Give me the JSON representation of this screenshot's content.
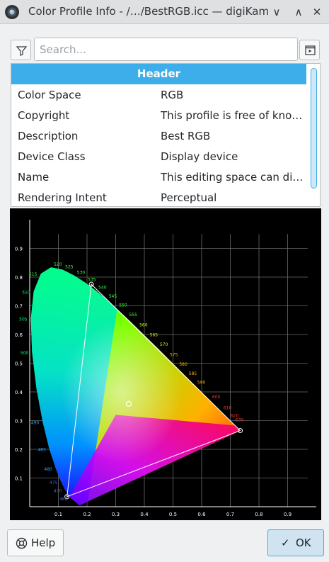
{
  "window": {
    "title": "Color Profile Info - /…/BestRGB.icc — digiKam",
    "minimize_glyph": "∨",
    "maximize_glyph": "∧",
    "close_glyph": "✕"
  },
  "toolbar": {
    "search_placeholder": "Search..."
  },
  "metadata_table": {
    "header": "Header",
    "rows": [
      {
        "key": "Color Space",
        "value": "RGB"
      },
      {
        "key": "Copyright",
        "value": "This profile is free of kno…"
      },
      {
        "key": "Description",
        "value": "Best RGB"
      },
      {
        "key": "Device Class",
        "value": "Display device"
      },
      {
        "key": "Name",
        "value": "This editing space can dis…"
      },
      {
        "key": "Rendering Intent",
        "value": "Perceptual"
      }
    ]
  },
  "chromaticity": {
    "x_ticks": [
      "0.1",
      "0.2",
      "0.3",
      "0.4",
      "0.5",
      "0.6",
      "0.7",
      "0.8",
      "0.9"
    ],
    "y_ticks": [
      "0.1",
      "0.2",
      "0.3",
      "0.4",
      "0.5",
      "0.6",
      "0.7",
      "0.8",
      "0.9"
    ],
    "wavelength_labels": [
      {
        "nm": "520",
        "x": 0.074,
        "y": 0.834
      },
      {
        "nm": "525",
        "x": 0.114,
        "y": 0.826
      },
      {
        "nm": "530",
        "x": 0.155,
        "y": 0.806
      },
      {
        "nm": "535",
        "x": 0.193,
        "y": 0.782
      },
      {
        "nm": "540",
        "x": 0.23,
        "y": 0.754
      },
      {
        "nm": "545",
        "x": 0.266,
        "y": 0.724
      },
      {
        "nm": "550",
        "x": 0.302,
        "y": 0.692
      },
      {
        "nm": "555",
        "x": 0.337,
        "y": 0.659
      },
      {
        "nm": "560",
        "x": 0.373,
        "y": 0.624
      },
      {
        "nm": "565",
        "x": 0.409,
        "y": 0.589
      },
      {
        "nm": "570",
        "x": 0.444,
        "y": 0.555
      },
      {
        "nm": "575",
        "x": 0.479,
        "y": 0.52
      },
      {
        "nm": "580",
        "x": 0.512,
        "y": 0.487
      },
      {
        "nm": "585",
        "x": 0.545,
        "y": 0.454
      },
      {
        "nm": "590",
        "x": 0.575,
        "y": 0.424
      },
      {
        "nm": "600",
        "x": 0.627,
        "y": 0.373
      },
      {
        "nm": "610",
        "x": 0.666,
        "y": 0.334
      },
      {
        "nm": "620",
        "x": 0.691,
        "y": 0.308
      },
      {
        "nm": "630",
        "x": 0.708,
        "y": 0.292
      },
      {
        "nm": "515",
        "x": 0.038,
        "y": 0.812
      },
      {
        "nm": "510",
        "x": 0.014,
        "y": 0.75
      },
      {
        "nm": "505",
        "x": 0.004,
        "y": 0.655
      },
      {
        "nm": "500",
        "x": 0.008,
        "y": 0.538
      },
      {
        "nm": "485",
        "x": 0.069,
        "y": 0.201
      },
      {
        "nm": "480",
        "x": 0.091,
        "y": 0.133
      },
      {
        "nm": "475",
        "x": 0.11,
        "y": 0.087
      },
      {
        "nm": "490",
        "x": 0.045,
        "y": 0.295
      },
      {
        "nm": "470",
        "x": 0.124,
        "y": 0.058
      },
      {
        "nm": "460",
        "x": 0.144,
        "y": 0.03
      }
    ],
    "gamut": {
      "red": {
        "x": 0.7347,
        "y": 0.2653
      },
      "green": {
        "x": 0.215,
        "y": 0.775
      },
      "blue": {
        "x": 0.13,
        "y": 0.035
      }
    },
    "white_point": {
      "x": 0.3457,
      "y": 0.3585
    },
    "colors": {
      "background": "#000000",
      "grid": "#6a6a6a",
      "axis": "#ffffff",
      "gamut_line": "#ffffff"
    }
  },
  "buttons": {
    "help_label": "Help",
    "ok_label": "OK"
  },
  "theme": {
    "accent": "#3daee9",
    "window_bg": "#eff0f1"
  }
}
